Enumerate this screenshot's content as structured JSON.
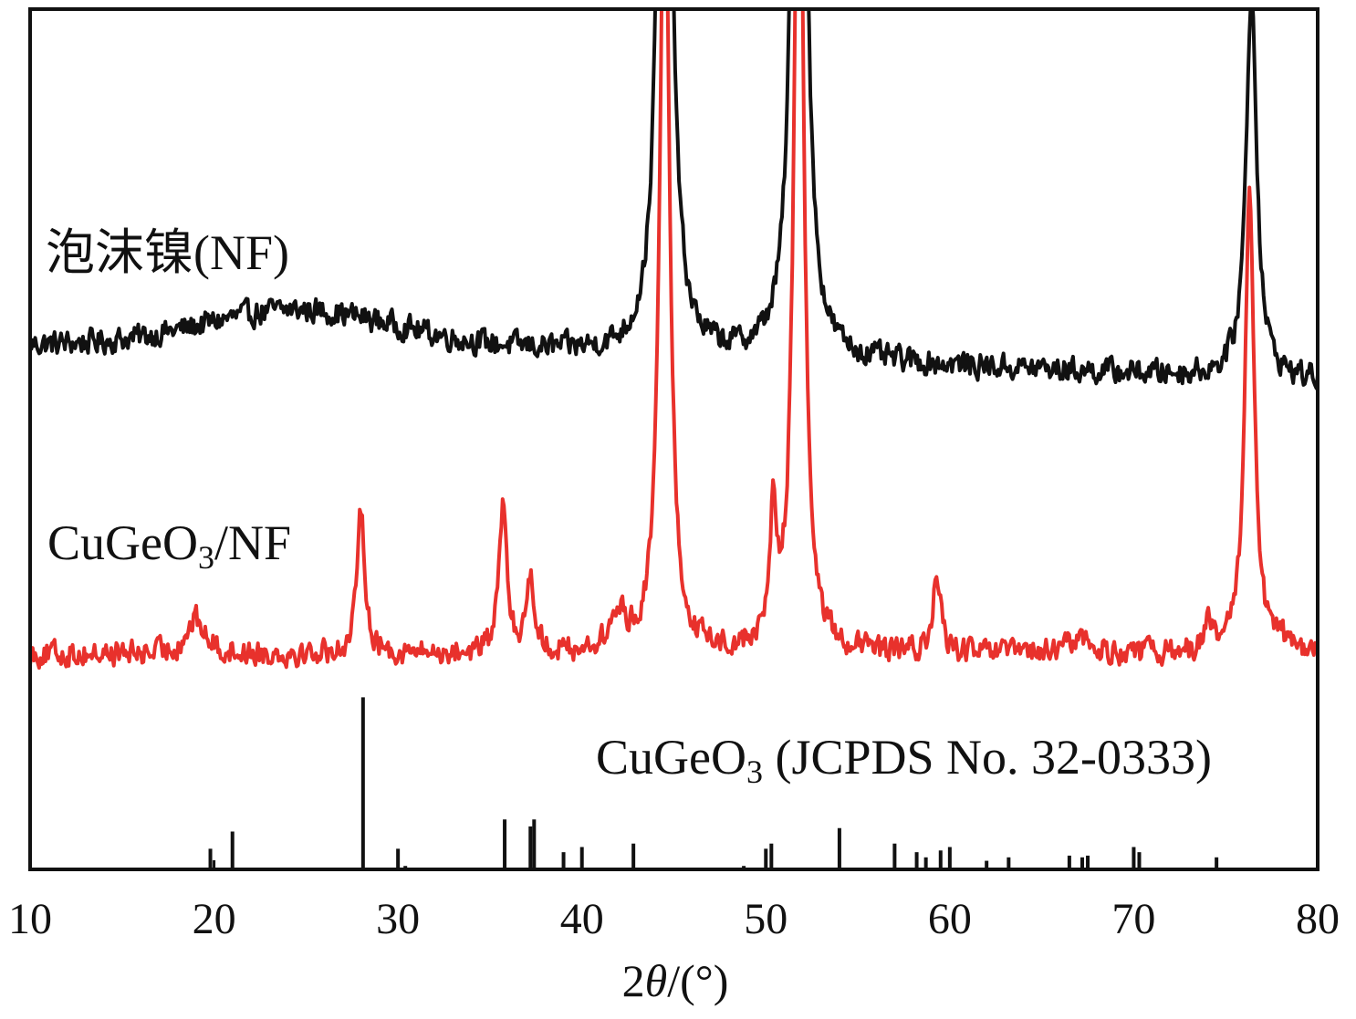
{
  "chart_data": {
    "type": "line",
    "title": "",
    "xlabel_prefix": "2",
    "xlabel_symbol": "θ",
    "xlabel_suffix": "/(°)",
    "ylabel": "",
    "xlim": [
      10,
      80
    ],
    "x_ticks": [
      10,
      20,
      30,
      40,
      50,
      60,
      70,
      80
    ],
    "ylim": [
      0,
      100
    ],
    "y_ticks_shown": false,
    "series": [
      {
        "name": "泡沫镍(NF)",
        "color": "#111111",
        "baseline": 61,
        "peaks": [
          {
            "x": 44.5,
            "height": 140,
            "width": 0.32
          },
          {
            "x": 51.8,
            "height": 150,
            "width": 0.32
          },
          {
            "x": 76.4,
            "height": 45,
            "width": 0.35
          }
        ]
      },
      {
        "name": "CuGeO",
        "name_sub": "3",
        "name_suffix": "/NF",
        "color": "#e8312c",
        "baseline": 25,
        "peaks": [
          {
            "x": 44.5,
            "height": 100,
            "width": 0.3
          },
          {
            "x": 51.8,
            "height": 110,
            "width": 0.3
          },
          {
            "x": 76.3,
            "height": 55,
            "width": 0.3
          },
          {
            "x": 28.0,
            "height": 17,
            "width": 0.25
          },
          {
            "x": 35.7,
            "height": 17,
            "width": 0.25
          },
          {
            "x": 37.2,
            "height": 9,
            "width": 0.25
          },
          {
            "x": 50.4,
            "height": 15,
            "width": 0.2
          },
          {
            "x": 59.3,
            "height": 9,
            "width": 0.25
          },
          {
            "x": 19.0,
            "height": 4,
            "width": 0.6
          },
          {
            "x": 42.0,
            "height": 4,
            "width": 0.5
          },
          {
            "x": 74.0,
            "height": 3,
            "width": 0.3
          },
          {
            "x": 67.0,
            "height": 2,
            "width": 0.6
          },
          {
            "x": 78.0,
            "height": 2,
            "width": 0.2
          }
        ]
      }
    ],
    "reference": {
      "name": "CuGeO",
      "name_sub": "3",
      "name_suffix": " (JCPDS No. 32-0333)",
      "color": "#111111",
      "x": [
        19.8,
        21.0,
        28.1,
        30.0,
        30.4,
        35.8,
        37.2,
        37.4,
        39.0,
        40.0,
        42.8,
        48.8,
        50.0,
        50.3,
        54.0,
        57.0,
        58.2,
        58.7,
        59.5,
        60.0,
        62.0,
        63.2,
        66.5,
        67.2,
        67.5,
        70.0,
        70.3,
        74.5
      ],
      "intensity": [
        12,
        22,
        100,
        12,
        2,
        29,
        25,
        29,
        10,
        13,
        15,
        2,
        12,
        15,
        24,
        15,
        10,
        7,
        11,
        13,
        5,
        7,
        8,
        7,
        8,
        13,
        10,
        7
      ]
    }
  }
}
